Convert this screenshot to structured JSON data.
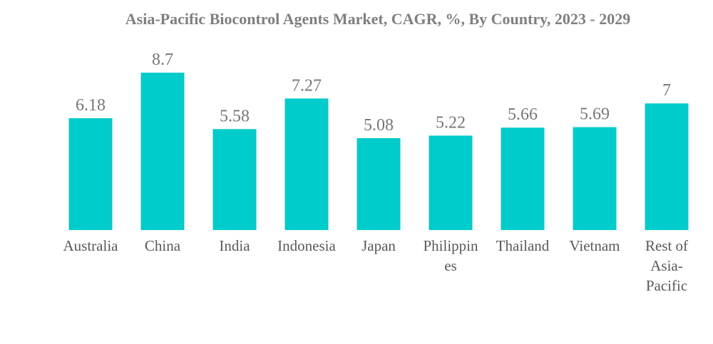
{
  "chart_data": {
    "type": "bar",
    "title": "Asia-Pacific Biocontrol Agents Market, CAGR, %, By Country, 2023 - 2029",
    "xlabel": "",
    "ylabel": "",
    "ylim": [
      0,
      9.5
    ],
    "grid": false,
    "bar_color": "#00cccc",
    "categories": [
      {
        "label": "Australia",
        "lines": [
          "Australia"
        ]
      },
      {
        "label": "China",
        "lines": [
          "China"
        ]
      },
      {
        "label": "India",
        "lines": [
          "India"
        ]
      },
      {
        "label": "Indonesia",
        "lines": [
          "Indonesia"
        ]
      },
      {
        "label": "Japan",
        "lines": [
          "Japan"
        ]
      },
      {
        "label": "Philippines",
        "lines": [
          "Philippin",
          "es"
        ]
      },
      {
        "label": "Thailand",
        "lines": [
          "Thailand"
        ]
      },
      {
        "label": "Vietnam",
        "lines": [
          "Vietnam"
        ]
      },
      {
        "label": "Rest of Asia-Pacific",
        "lines": [
          "Rest of",
          "Asia-",
          "Pacific"
        ]
      }
    ],
    "values": [
      6.18,
      8.7,
      5.58,
      7.27,
      5.08,
      5.22,
      5.66,
      5.69,
      7
    ],
    "value_labels": [
      "6.18",
      "8.7",
      "5.58",
      "7.27",
      "5.08",
      "5.22",
      "5.66",
      "5.69",
      "7"
    ]
  }
}
